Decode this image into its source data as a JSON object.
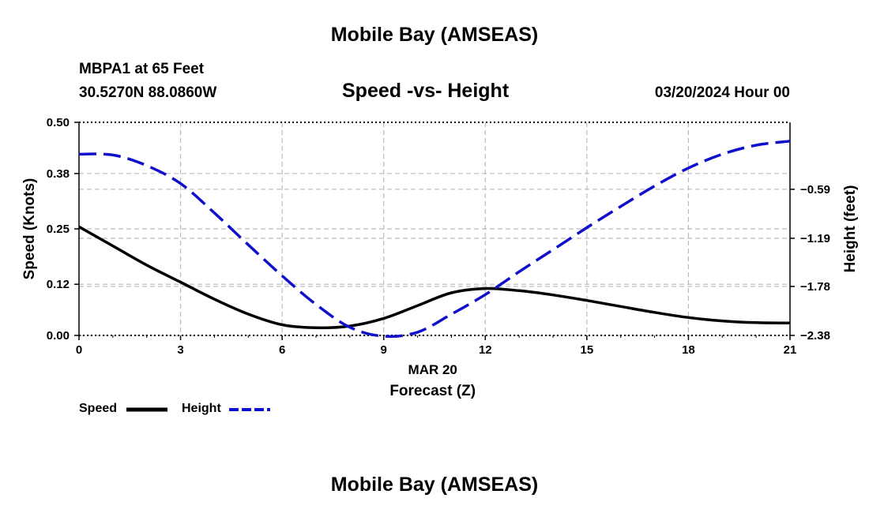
{
  "header": {
    "title": "Mobile Bay (AMSEAS)",
    "station": "MBPA1 at 65 Feet",
    "coords": "30.5270N  88.0860W",
    "plot_title": "Speed -vs- Height",
    "date": "03/20/2024 Hour 00"
  },
  "footer": {
    "title": "Mobile Bay (AMSEAS)"
  },
  "legend": {
    "speed_label": "Speed",
    "height_label": "Height"
  },
  "colors": {
    "speed": "#000000",
    "height": "#1010cc",
    "grid": "#bbbbbb"
  },
  "chart_data": {
    "type": "line",
    "title": "Speed -vs- Height",
    "xlabel": "Forecast (Z)",
    "x_date_label": "MAR 20",
    "ylabel": "Speed (Knots)",
    "y2label": "Height (feet)",
    "xlim": [
      0,
      21
    ],
    "ylim": [
      0,
      0.5
    ],
    "y2lim": [
      -2.38,
      0.23
    ],
    "x_ticks": [
      0,
      3,
      6,
      9,
      12,
      15,
      18,
      21
    ],
    "x_tick_labels": [
      "0",
      "3",
      "6",
      "9",
      "12",
      "15",
      "18",
      "21"
    ],
    "y_ticks": [
      0,
      0.12,
      0.25,
      0.38,
      0.5
    ],
    "y_tick_labels": [
      "0.00",
      "0.12",
      "0.25",
      "0.38",
      "0.50"
    ],
    "y2_ticks": [
      -2.38,
      -1.78,
      -1.19,
      -0.59
    ],
    "y2_tick_labels": [
      "-2.38",
      "-1.78",
      "-1.19",
      "-0.59"
    ],
    "grid": true,
    "legend_position": "bottom-left",
    "series": [
      {
        "name": "Speed",
        "axis": "left",
        "style": "solid",
        "x": [
          0,
          1,
          2,
          3,
          4,
          5,
          6,
          7,
          8,
          9,
          10,
          11,
          12,
          13,
          14,
          15,
          16,
          17,
          18,
          19,
          20,
          21
        ],
        "values": [
          0.255,
          0.21,
          0.165,
          0.125,
          0.085,
          0.05,
          0.025,
          0.018,
          0.022,
          0.04,
          0.07,
          0.1,
          0.11,
          0.105,
          0.095,
          0.082,
          0.068,
          0.054,
          0.042,
          0.034,
          0.03,
          0.029
        ]
      },
      {
        "name": "Height",
        "axis": "right",
        "style": "dashed",
        "x": [
          0,
          1,
          2,
          3,
          4,
          5,
          6,
          7,
          8,
          9,
          10,
          11,
          12,
          13,
          14,
          15,
          16,
          17,
          18,
          19,
          20,
          21
        ],
        "values": [
          -0.16,
          -0.17,
          -0.3,
          -0.52,
          -0.88,
          -1.27,
          -1.65,
          -2.0,
          -2.28,
          -2.39,
          -2.34,
          -2.12,
          -1.88,
          -1.6,
          -1.33,
          -1.06,
          -0.8,
          -0.55,
          -0.33,
          -0.16,
          -0.05,
          0.0
        ]
      }
    ]
  }
}
